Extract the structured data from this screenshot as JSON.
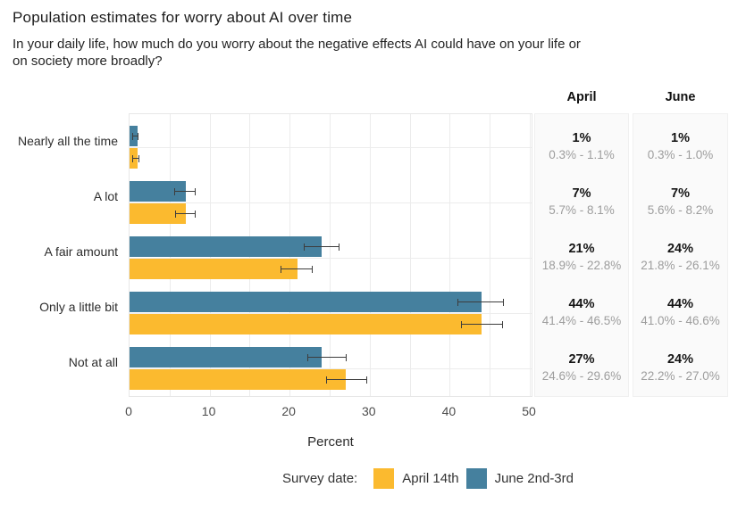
{
  "header": {
    "title": "Population estimates for worry about AI over time",
    "subtitle": "In your daily life, how much do you worry about the negative effects AI could have on your life or\non society more broadly?"
  },
  "colors": {
    "april": "#FBBA2F",
    "june": "#45809E",
    "grid": "#ececec",
    "panel_border": "#e7e7e7",
    "table_bg": "#fafafa",
    "ci_text": "#9d9d9d",
    "error_bar": "#3d3d3d"
  },
  "chart_data": {
    "type": "bar",
    "orientation": "horizontal",
    "title": "Population estimates for worry about AI over time",
    "categories": [
      "Nearly all the time",
      "A lot",
      "A fair amount",
      "Only a little bit",
      "Not at all"
    ],
    "series": [
      {
        "name": "June 2nd-3rd",
        "color_key": "june",
        "values": [
          1,
          7,
          24,
          44,
          24
        ],
        "ci_low": [
          0.3,
          5.6,
          21.8,
          41.0,
          22.2
        ],
        "ci_high": [
          1.0,
          8.2,
          26.1,
          46.6,
          27.0
        ]
      },
      {
        "name": "April 14th",
        "color_key": "april",
        "values": [
          1,
          7,
          21,
          44,
          27
        ],
        "ci_low": [
          0.3,
          5.7,
          18.9,
          41.4,
          24.6
        ],
        "ci_high": [
          1.1,
          8.1,
          22.8,
          46.5,
          29.6
        ]
      }
    ],
    "xlabel": "Percent",
    "xticks": [
      0,
      10,
      20,
      30,
      40,
      50
    ],
    "xlim": [
      0,
      50.4
    ],
    "grid": true,
    "legend_position": "bottom"
  },
  "table": {
    "columns": [
      "April",
      "June"
    ],
    "rows": [
      {
        "april": {
          "value": "1%",
          "ci": "0.3% - 1.1%"
        },
        "june": {
          "value": "1%",
          "ci": "0.3% - 1.0%"
        }
      },
      {
        "april": {
          "value": "7%",
          "ci": "5.7% - 8.1%"
        },
        "june": {
          "value": "7%",
          "ci": "5.6% - 8.2%"
        }
      },
      {
        "april": {
          "value": "21%",
          "ci": "18.9% - 22.8%"
        },
        "june": {
          "value": "24%",
          "ci": "21.8% - 26.1%"
        }
      },
      {
        "april": {
          "value": "44%",
          "ci": "41.4% - 46.5%"
        },
        "june": {
          "value": "44%",
          "ci": "41.0% - 46.6%"
        }
      },
      {
        "april": {
          "value": "27%",
          "ci": "24.6% - 29.6%"
        },
        "june": {
          "value": "24%",
          "ci": "22.2% - 27.0%"
        }
      }
    ]
  },
  "legend": {
    "label": "Survey date:",
    "items": [
      {
        "label": "April 14th",
        "color_key": "april"
      },
      {
        "label": "June 2nd-3rd",
        "color_key": "june"
      }
    ]
  }
}
